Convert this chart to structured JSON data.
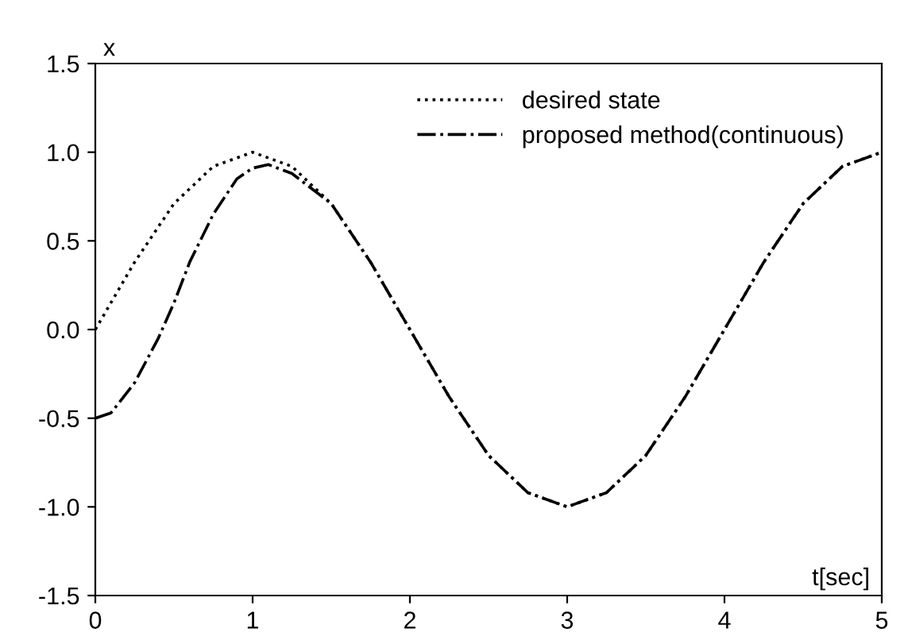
{
  "chart_data": {
    "type": "line",
    "xlabel": "t[sec]",
    "ylabel": "x",
    "xlim": [
      0,
      5
    ],
    "ylim": [
      -1.5,
      1.5
    ],
    "xticks": [
      0,
      1,
      2,
      3,
      4,
      5
    ],
    "yticks": [
      {
        "value": -1.5,
        "label": "-1.5"
      },
      {
        "value": -1.0,
        "label": "-1.0"
      },
      {
        "value": -0.5,
        "label": "-0.5"
      },
      {
        "value": 0.0,
        "label": "0.0"
      },
      {
        "value": 0.5,
        "label": "0.5"
      },
      {
        "value": 1.0,
        "label": "1.0"
      },
      {
        "value": 1.5,
        "label": "1.5"
      }
    ],
    "grid": false,
    "legend": "top right",
    "series": [
      {
        "name": "desired state",
        "color": "#000000",
        "line_style": "dotted",
        "x": [
          0,
          0.25,
          0.5,
          0.75,
          1,
          1.25,
          1.5,
          1.75,
          2,
          2.25,
          2.5,
          2.75,
          3,
          3.25,
          3.5,
          3.75,
          4,
          4.25,
          4.5,
          4.75,
          5
        ],
        "values": [
          0,
          0.38,
          0.71,
          0.92,
          1,
          0.92,
          0.71,
          0.38,
          0,
          -0.38,
          -0.71,
          -0.92,
          -1,
          -0.92,
          -0.71,
          -0.38,
          0,
          0.38,
          0.71,
          0.92,
          1
        ]
      },
      {
        "name": "proposed method(continuous)",
        "color": "#000000",
        "line_style": "dashdot",
        "x": [
          0,
          0.1,
          0.25,
          0.4,
          0.5,
          0.6,
          0.75,
          0.9,
          1,
          1.1,
          1.25,
          1.5,
          1.75,
          2,
          2.25,
          2.5,
          2.75,
          3,
          3.25,
          3.5,
          3.75,
          4,
          4.25,
          4.5,
          4.75,
          5
        ],
        "values": [
          -0.5,
          -0.47,
          -0.3,
          -0.05,
          0.15,
          0.38,
          0.65,
          0.85,
          0.91,
          0.93,
          0.88,
          0.71,
          0.38,
          0,
          -0.38,
          -0.71,
          -0.92,
          -1,
          -0.92,
          -0.71,
          -0.38,
          0,
          0.38,
          0.71,
          0.92,
          1
        ]
      }
    ]
  }
}
